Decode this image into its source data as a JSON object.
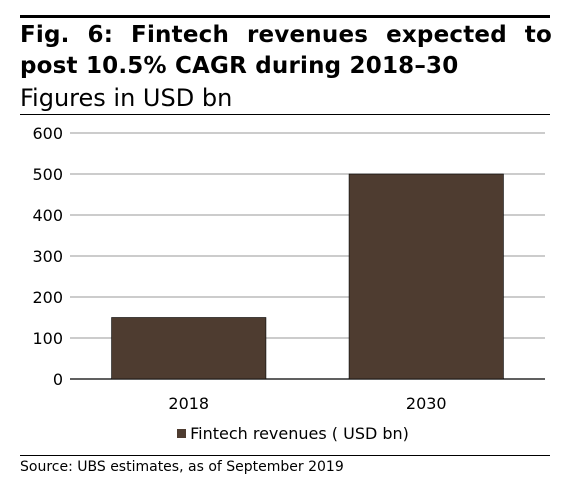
{
  "figure": {
    "title": "Fig. 6: Fintech revenues expected to post 10.5% CAGR during 2018–30",
    "subtitle": "Figures in USD bn",
    "source": "Source: UBS estimates, as of September 2019"
  },
  "chart_data": {
    "type": "bar",
    "categories": [
      "2018",
      "2030"
    ],
    "series": [
      {
        "name": "Fintech revenues ( USD bn)",
        "values": [
          150,
          500
        ]
      }
    ],
    "ylim": [
      0,
      600
    ],
    "yticks": [
      0,
      100,
      200,
      300,
      400,
      500,
      600
    ],
    "grid": true,
    "legend_position": "bottom",
    "bar_color": "#4e3c30",
    "grid_color": "#9a9a9a"
  }
}
